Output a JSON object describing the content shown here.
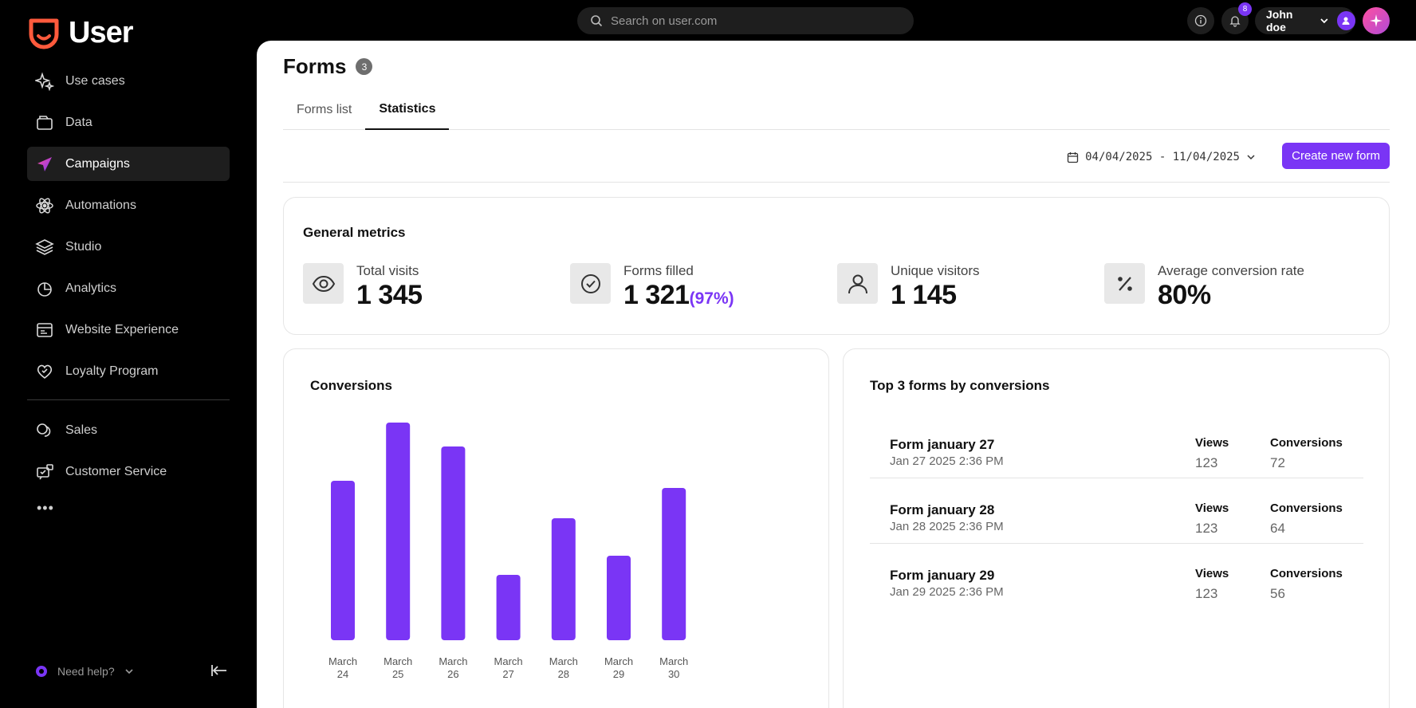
{
  "brand": {
    "name": "User",
    "accent": "#ff5a3c",
    "primary": "#7a35f5"
  },
  "topbar": {
    "search_placeholder": "Search on user.com",
    "notifications_count": "8",
    "user_name": "John doe"
  },
  "sidebar": {
    "items": [
      {
        "label": "Use cases",
        "icon": "sparkles-icon"
      },
      {
        "label": "Data",
        "icon": "folder-icon"
      },
      {
        "label": "Campaigns",
        "icon": "paper-plane-icon",
        "active": true
      },
      {
        "label": "Automations",
        "icon": "atom-icon"
      },
      {
        "label": "Studio",
        "icon": "layers-icon"
      },
      {
        "label": "Analytics",
        "icon": "pie-chart-icon"
      },
      {
        "label": "Website Experience",
        "icon": "browser-window-icon"
      },
      {
        "label": "Loyalty Program",
        "icon": "heart-badge-icon"
      }
    ],
    "secondary_items": [
      {
        "label": "Sales",
        "icon": "coins-icon"
      },
      {
        "label": "Customer Service",
        "icon": "support-chat-icon"
      }
    ],
    "more": "•••",
    "help_label": "Need help?"
  },
  "page": {
    "title": "Forms",
    "count": "3",
    "tabs": [
      {
        "label": "Forms list",
        "active": false
      },
      {
        "label": "Statistics",
        "active": true
      }
    ],
    "date_range": "04/04/2025 - 11/04/2025",
    "create_button": "Create new form"
  },
  "metrics": {
    "title": "General metrics",
    "items": [
      {
        "label": "Total visits",
        "value": "1 345",
        "extra": "",
        "icon": "eye-icon"
      },
      {
        "label": "Forms filled",
        "value": "1 321",
        "extra": "(97%)",
        "icon": "check-circle-icon"
      },
      {
        "label": "Unique visitors",
        "value": "1 145",
        "extra": "",
        "icon": "user-icon"
      },
      {
        "label": "Average conversion rate",
        "value": "80%",
        "extra": "",
        "icon": "percent-icon"
      }
    ]
  },
  "conversions": {
    "title": "Conversions"
  },
  "chart_data": {
    "type": "bar",
    "categories": [
      "March 24",
      "March 25",
      "March 26",
      "March 27",
      "March 28",
      "March 29",
      "March 30"
    ],
    "values": [
      200,
      273,
      243,
      82,
      153,
      106,
      191
    ],
    "ylim": [
      0,
      280
    ],
    "grid": false,
    "color": "#7a35f5"
  },
  "top_forms": {
    "title": "Top 3 forms by conversions",
    "views_label": "Views",
    "conversions_label": "Conversions",
    "rows": [
      {
        "name": "Form january 27",
        "date": "Jan 27 2025 2:36 PM",
        "views": "123",
        "conversions": "72"
      },
      {
        "name": "Form january 28",
        "date": "Jan 28 2025 2:36 PM",
        "views": "123",
        "conversions": "64"
      },
      {
        "name": "Form january 29",
        "date": "Jan 29 2025 2:36 PM",
        "views": "123",
        "conversions": "56"
      }
    ]
  }
}
